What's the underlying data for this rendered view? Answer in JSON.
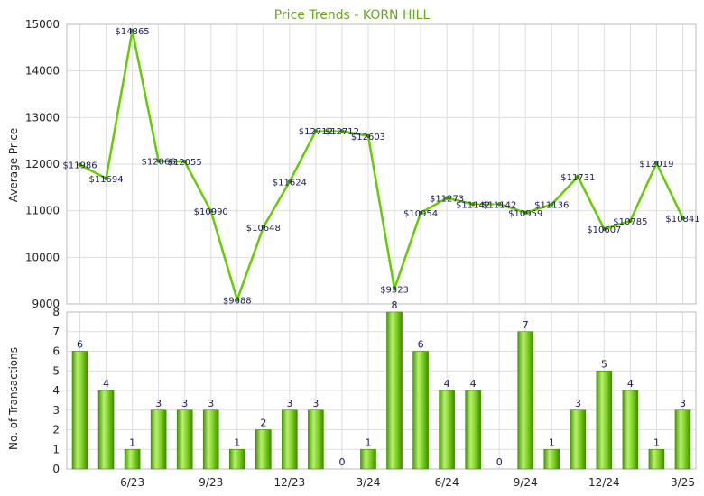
{
  "chart_data": [
    {
      "type": "line",
      "title": "Price Trends - KORN HILL",
      "ylabel": "Average Price",
      "ylim": [
        9000,
        15000
      ],
      "yticks": [
        9000,
        10000,
        11000,
        12000,
        13000,
        14000,
        15000
      ],
      "grid": true,
      "line_color": "#66cc00",
      "series": [
        {
          "values": [
            11986,
            11694,
            14865,
            12066,
            12055,
            10990,
            9088,
            10648,
            11624,
            12712,
            12712,
            12603,
            9323,
            10954,
            11273,
            11142,
            11142,
            10959,
            11136,
            11731,
            10607,
            10785,
            12019,
            10841
          ],
          "labels": [
            "$11986",
            "$11694",
            "$14865",
            "$12066",
            "$12055",
            "$10990",
            "$9088",
            "$10648",
            "$11624",
            "$12712",
            "$12712",
            "$12603",
            "$9323",
            "$10954",
            "$11273",
            "$11142",
            "$11142",
            "$10959",
            "$11136",
            "$11731",
            "$10607",
            "$10785",
            "$12019",
            "$10841"
          ]
        }
      ],
      "dashed_segments": [
        [
          9,
          10
        ],
        [
          15,
          16
        ]
      ]
    },
    {
      "type": "bar",
      "ylabel": "No. of Transactions",
      "ylim": [
        0,
        8
      ],
      "yticks": [
        0,
        1,
        2,
        3,
        4,
        5,
        6,
        7,
        8
      ],
      "grid": true,
      "bar_color": "#66cc00",
      "values": [
        6,
        4,
        1,
        3,
        3,
        3,
        1,
        2,
        3,
        3,
        0,
        1,
        8,
        6,
        4,
        4,
        0,
        7,
        1,
        3,
        5,
        4,
        1,
        3
      ],
      "xtick_labels": [
        {
          "index": 2,
          "label": "6/23"
        },
        {
          "index": 5,
          "label": "9/23"
        },
        {
          "index": 8,
          "label": "12/23"
        },
        {
          "index": 11,
          "label": "3/24"
        },
        {
          "index": 14,
          "label": "6/24"
        },
        {
          "index": 17,
          "label": "9/24"
        },
        {
          "index": 20,
          "label": "12/24"
        },
        {
          "index": 23,
          "label": "3/25"
        }
      ]
    }
  ]
}
